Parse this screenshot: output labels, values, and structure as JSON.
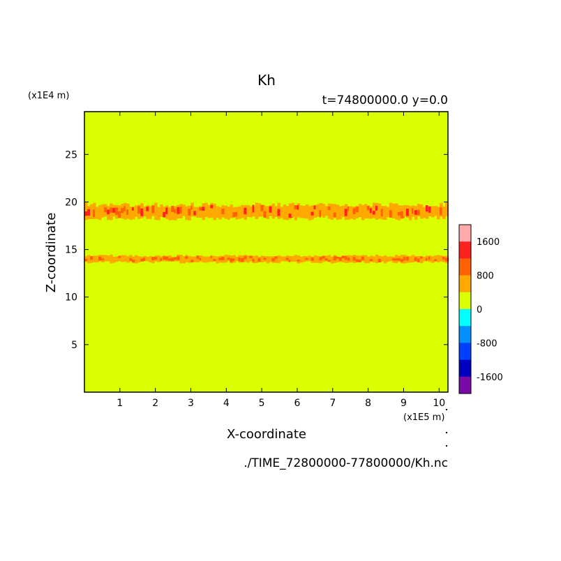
{
  "chart_data": {
    "type": "heatmap",
    "title": "Kh",
    "subtitle": "t=74800000.0 y=0.0",
    "xlabel": "X-coordinate",
    "ylabel": "Z-coordinate",
    "x_unit": "(x1E5 m)",
    "y_unit": "(x1E4 m)",
    "source_file": "./TIME_72800000-77800000/Kh.nc",
    "xlim": [
      0.0,
      10.25
    ],
    "ylim": [
      0.0,
      29.5
    ],
    "x_ticks": [
      1,
      2,
      3,
      4,
      5,
      6,
      7,
      8,
      9,
      10
    ],
    "y_ticks": [
      5,
      10,
      15,
      20,
      25
    ],
    "background_level": "0 to 400",
    "bands": [
      {
        "z_center": 19.0,
        "z_half_width": 0.7,
        "dominant_level": "400 to 800",
        "peak_level": "1200 to 1600"
      },
      {
        "z_center": 14.0,
        "z_half_width": 0.35,
        "dominant_level": "400 to 800",
        "peak_level": "800 to 1200"
      }
    ],
    "colorbar": {
      "levels": [
        {
          "range": "1600 to 2000",
          "color": "#ffaaaa"
        },
        {
          "range": "1200 to 1600",
          "color": "#ff2020"
        },
        {
          "range": "800 to 1200",
          "color": "#ff6000"
        },
        {
          "range": "400 to 800",
          "color": "#ffa800"
        },
        {
          "range": "0 to 400",
          "color": "#d9ff00"
        },
        {
          "range": "-400 to 0",
          "color": "#00ffff"
        },
        {
          "range": "-800 to -400",
          "color": "#0090ff"
        },
        {
          "range": "-1200 to -800",
          "color": "#0040ff"
        },
        {
          "range": "-1600 to -1200",
          "color": "#0000c0"
        },
        {
          "range": "-2000 to -1600",
          "color": "#7a0aa8"
        }
      ],
      "tick_labels": [
        "1600",
        "800",
        "0",
        "-800",
        "-1600"
      ],
      "tick_values": [
        1600,
        800,
        0,
        -800,
        -1600
      ]
    }
  }
}
